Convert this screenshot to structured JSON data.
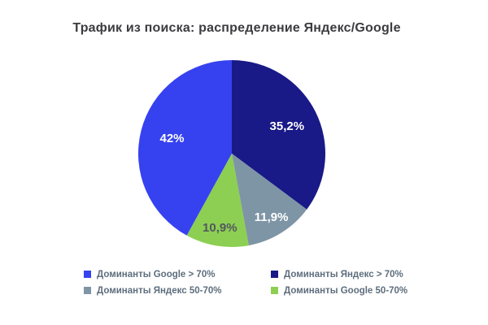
{
  "page": {
    "background_color": "#ffffff"
  },
  "chart_data": {
    "type": "pie",
    "title": "Трафик из поиска: распределение Яндекс/Google",
    "start_angle_deg": 0,
    "direction": "clockwise",
    "legend_position": "bottom",
    "slices": [
      {
        "label": "Доминанты Яндекс > 70%",
        "value": 35.2,
        "display": "35,2%",
        "color": "#191987",
        "label_color": "#ffffff"
      },
      {
        "label": "Доминанты Яндекс 50-70%",
        "value": 11.9,
        "display": "11,9%",
        "color": "#7E95A6",
        "label_color": "#ffffff"
      },
      {
        "label": "Доминанты Google 50-70%",
        "value": 10.9,
        "display": "10,9%",
        "color": "#8CCF52",
        "label_color": "#54585e"
      },
      {
        "label": "Доминанты Google > 70%",
        "value": 42,
        "display": "42%",
        "color": "#3642EF",
        "label_color": "#ffffff"
      }
    ],
    "legend": {
      "items": [
        {
          "label": "Доминанты Google > 70%",
          "color": "#3642EF"
        },
        {
          "label": "Доминанты Яндекс > 70%",
          "color": "#191987"
        },
        {
          "label": "Доминанты Яндекс 50-70%",
          "color": "#7E95A6"
        },
        {
          "label": "Доминанты Google 50-70%",
          "color": "#8CCF52"
        }
      ]
    }
  }
}
